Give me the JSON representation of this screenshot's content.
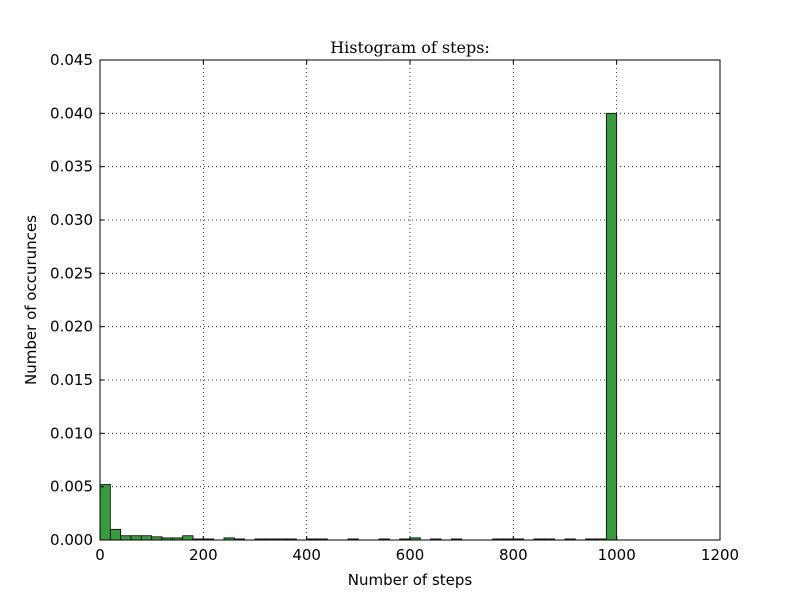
{
  "chart_data": {
    "type": "bar",
    "title": "Histogram of steps:",
    "xlabel": "Number of steps",
    "ylabel": "Number of occurunces",
    "xlim": [
      0,
      1200
    ],
    "ylim": [
      0,
      0.045
    ],
    "xticks": [
      "0",
      "200",
      "400",
      "600",
      "800",
      "1000",
      "1200"
    ],
    "yticks": [
      "0.000",
      "0.005",
      "0.010",
      "0.015",
      "0.020",
      "0.025",
      "0.030",
      "0.035",
      "0.040",
      "0.045"
    ],
    "grid": true,
    "bar_color": "#3a9a3f",
    "bin_width": 20,
    "bins": [
      {
        "x0": 0,
        "value": 0.0052
      },
      {
        "x0": 20,
        "value": 0.001
      },
      {
        "x0": 40,
        "value": 0.0004
      },
      {
        "x0": 60,
        "value": 0.0004
      },
      {
        "x0": 80,
        "value": 0.0004
      },
      {
        "x0": 100,
        "value": 0.0003
      },
      {
        "x0": 120,
        "value": 0.0002
      },
      {
        "x0": 140,
        "value": 0.0002
      },
      {
        "x0": 160,
        "value": 0.0004
      },
      {
        "x0": 180,
        "value": 0.0001
      },
      {
        "x0": 200,
        "value": 0.0001
      },
      {
        "x0": 240,
        "value": 0.0002
      },
      {
        "x0": 260,
        "value": 0.0001
      },
      {
        "x0": 300,
        "value": 0.0001
      },
      {
        "x0": 320,
        "value": 0.0001
      },
      {
        "x0": 340,
        "value": 0.0001
      },
      {
        "x0": 360,
        "value": 0.0001
      },
      {
        "x0": 400,
        "value": 0.0001
      },
      {
        "x0": 420,
        "value": 0.0001
      },
      {
        "x0": 480,
        "value": 0.0001
      },
      {
        "x0": 540,
        "value": 0.0001
      },
      {
        "x0": 580,
        "value": 0.0001
      },
      {
        "x0": 600,
        "value": 0.0002
      },
      {
        "x0": 640,
        "value": 0.0001
      },
      {
        "x0": 680,
        "value": 0.0001
      },
      {
        "x0": 760,
        "value": 0.0001
      },
      {
        "x0": 780,
        "value": 0.0001
      },
      {
        "x0": 800,
        "value": 0.0001
      },
      {
        "x0": 840,
        "value": 0.0001
      },
      {
        "x0": 860,
        "value": 0.0001
      },
      {
        "x0": 900,
        "value": 0.0001
      },
      {
        "x0": 940,
        "value": 0.0001
      },
      {
        "x0": 960,
        "value": 0.0001
      },
      {
        "x0": 980,
        "value": 0.04
      }
    ]
  }
}
